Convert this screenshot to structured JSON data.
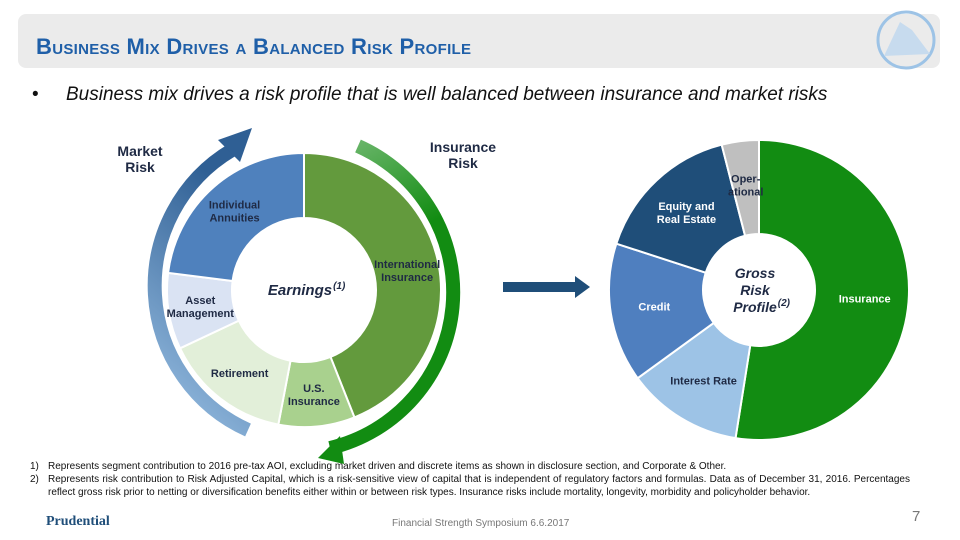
{
  "header": {
    "title": "Business Mix Drives a Balanced Risk Profile"
  },
  "bullet": "Business mix drives a risk profile that is well balanced between insurance and market risks",
  "arc_labels": {
    "market": "Market\nRisk",
    "insurance": "Insurance\nRisk"
  },
  "chart_data": [
    {
      "type": "pie",
      "center_label": "Earnings",
      "center_note": "(1)",
      "categories": [
        "International\nInsurance",
        "U.S.\nInsurance",
        "Retirement",
        "Asset\nManagement",
        "Individual\nAnnuities"
      ],
      "values": [
        44,
        9,
        15,
        9,
        23
      ],
      "colors": [
        "#639a3d",
        "#a9d18e",
        "#e2efd9",
        "#dae3f3",
        "#4f81bd"
      ],
      "label_colors": [
        "#1f2a44",
        "#1f2a44",
        "#1f2a44",
        "#1f2a44",
        "#1f2a44"
      ]
    },
    {
      "type": "pie",
      "center_label": "Gross\nRisk\nProfile",
      "center_note": "(2)",
      "categories": [
        "Insurance",
        "Interest Rate",
        "Credit",
        "Equity and\nReal Estate",
        "Oper-\national"
      ],
      "values": [
        52.5,
        12.5,
        15,
        16,
        4
      ],
      "colors": [
        "#128c12",
        "#9dc3e6",
        "#4f7fbf",
        "#1f4e79",
        "#bfbfbf"
      ],
      "label_colors": [
        "#ffffff",
        "#1f2a44",
        "#ffffff",
        "#ffffff",
        "#1f2a44"
      ]
    }
  ],
  "footnotes": [
    {
      "num": "1)",
      "text": "Represents segment contribution to 2016 pre-tax AOI, excluding market driven and discrete items as shown in disclosure section, and Corporate & Other."
    },
    {
      "num": "2)",
      "text": "Represents risk contribution to Risk Adjusted Capital, which is a risk-sensitive view of capital that is independent of regulatory factors and formulas. Data as of December 31, 2016. Percentages reflect gross risk prior to netting or diversification benefits either within or between risk types. Insurance risks include mortality, longevity, morbidity and policyholder behavior."
    }
  ],
  "footer": {
    "logo": "Prudential",
    "event": "Financial Strength Symposium 6.6.2017",
    "page": "7"
  }
}
